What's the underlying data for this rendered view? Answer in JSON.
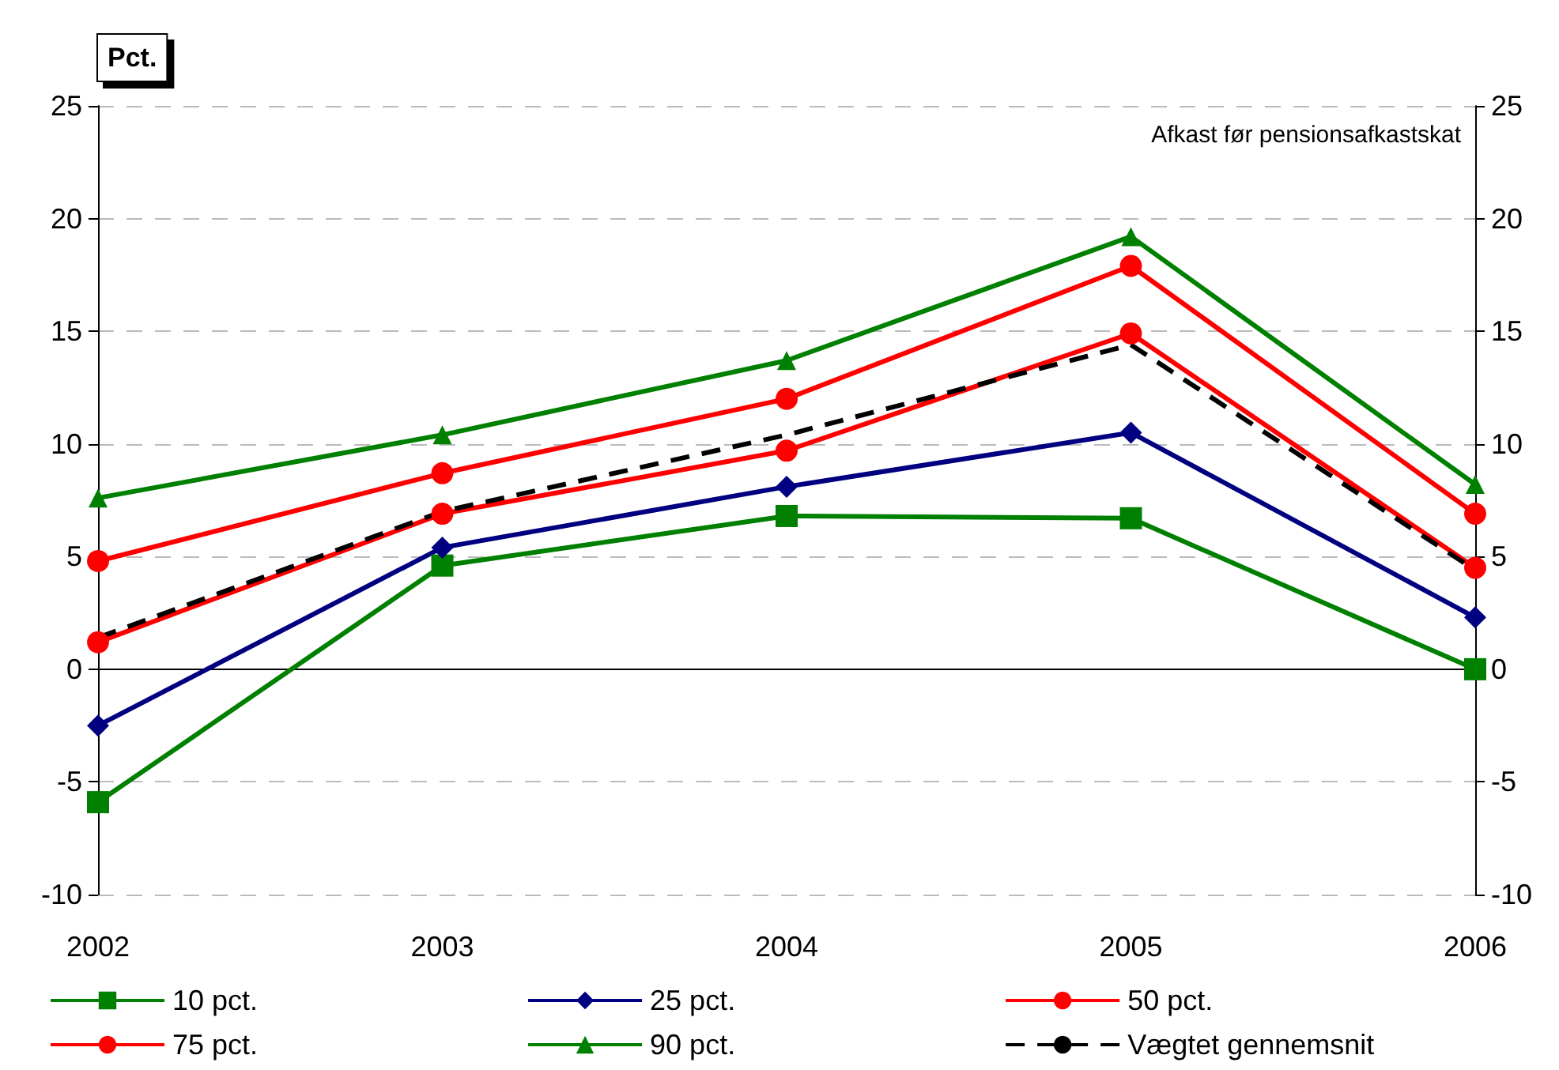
{
  "chart_data": {
    "type": "line",
    "ylabel": "Pct.",
    "annotations": [
      "Afkast før pensionsafkastskat"
    ],
    "categories": [
      "2002",
      "2003",
      "2004",
      "2005",
      "2006"
    ],
    "series": [
      {
        "name": "10 pct.",
        "color": "#008000",
        "marker": "square",
        "values": [
          -5.9,
          4.6,
          6.8,
          6.7,
          0
        ]
      },
      {
        "name": "25 pct.",
        "color": "#000080",
        "marker": "diamond",
        "values": [
          -2.5,
          5.4,
          8.1,
          10.5,
          2.3
        ]
      },
      {
        "name": "50 pct.",
        "color": "#ff0000",
        "marker": "circle",
        "values": [
          1.2,
          6.9,
          9.7,
          14.9,
          4.5
        ]
      },
      {
        "name": "75 pct.",
        "color": "#ff0000",
        "marker": "circle",
        "values": [
          4.8,
          8.7,
          12.0,
          17.9,
          6.9
        ]
      },
      {
        "name": "90 pct.",
        "color": "#008000",
        "marker": "triangle",
        "values": [
          7.6,
          10.4,
          13.7,
          19.2,
          8.2
        ]
      },
      {
        "name": "Vægtet gennemsnit",
        "color": "#000000",
        "marker": "none",
        "line_style": "dashed",
        "values": [
          1.4,
          7.0,
          10.4,
          14.4,
          4.4
        ]
      }
    ],
    "ylim": [
      -10,
      25
    ],
    "yticks": [
      -10,
      -5,
      0,
      5,
      10,
      15,
      20,
      25
    ],
    "y2lim": [
      -10,
      25
    ],
    "y2ticks": [
      -10,
      -5,
      0,
      5,
      10,
      15,
      20,
      25
    ],
    "grid": "y",
    "legend": "bottom"
  }
}
